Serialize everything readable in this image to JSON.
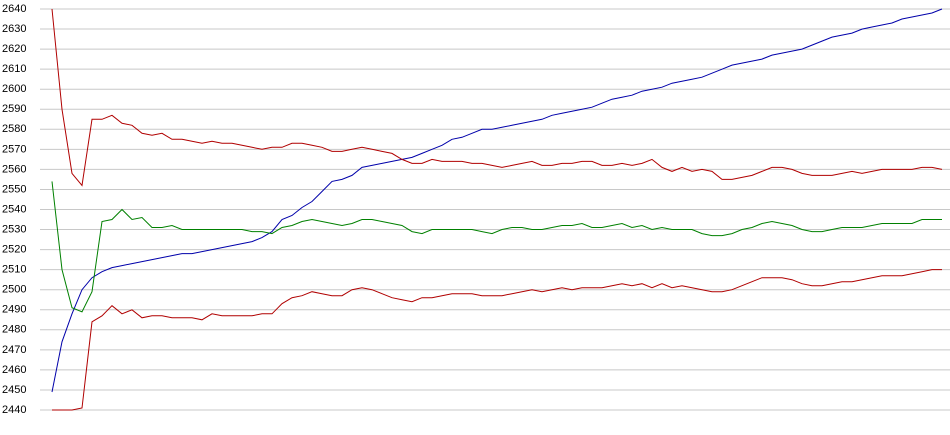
{
  "chart_data": {
    "type": "line",
    "ylim": [
      2440,
      2640
    ],
    "yticks": [
      2440,
      2450,
      2460,
      2470,
      2480,
      2490,
      2500,
      2510,
      2520,
      2530,
      2540,
      2550,
      2560,
      2570,
      2580,
      2590,
      2600,
      2610,
      2620,
      2630,
      2640
    ],
    "grid": true,
    "series": [
      {
        "color": "#0000aa",
        "values": [
          2449,
          2474,
          2488,
          2500,
          2506,
          2509,
          2511,
          2512,
          2513,
          2514,
          2515,
          2516,
          2517,
          2518,
          2518,
          2519,
          2520,
          2521,
          2522,
          2523,
          2524,
          2526,
          2529,
          2535,
          2537,
          2541,
          2544,
          2549,
          2554,
          2555,
          2557,
          2561,
          2562,
          2563,
          2564,
          2565,
          2566,
          2568,
          2570,
          2572,
          2575,
          2576,
          2578,
          2580,
          2580,
          2581,
          2582,
          2583,
          2584,
          2585,
          2587,
          2588,
          2589,
          2590,
          2591,
          2593,
          2595,
          2596,
          2597,
          2599,
          2600,
          2601,
          2603,
          2604,
          2605,
          2606,
          2608,
          2610,
          2612,
          2613,
          2614,
          2615,
          2617,
          2618,
          2619,
          2620,
          2622,
          2624,
          2626,
          2627,
          2628,
          2630,
          2631,
          2632,
          2633,
          2635,
          2636,
          2637,
          2638,
          2640
        ]
      },
      {
        "color": "#b00000",
        "values": [
          2640,
          2590,
          2558,
          2552,
          2585,
          2585,
          2587,
          2583,
          2582,
          2578,
          2577,
          2578,
          2575,
          2575,
          2574,
          2573,
          2574,
          2573,
          2573,
          2572,
          2571,
          2570,
          2571,
          2571,
          2573,
          2573,
          2572,
          2571,
          2569,
          2569,
          2570,
          2571,
          2570,
          2569,
          2568,
          2565,
          2563,
          2563,
          2565,
          2564,
          2564,
          2564,
          2563,
          2563,
          2562,
          2561,
          2562,
          2563,
          2564,
          2562,
          2562,
          2563,
          2563,
          2564,
          2564,
          2562,
          2562,
          2563,
          2562,
          2563,
          2565,
          2561,
          2559,
          2561,
          2559,
          2560,
          2559,
          2555,
          2555,
          2556,
          2557,
          2559,
          2561,
          2561,
          2560,
          2558,
          2557,
          2557,
          2557,
          2558,
          2559,
          2558,
          2559,
          2560,
          2560,
          2560,
          2560,
          2561,
          2561,
          2560
        ]
      },
      {
        "color": "#008000",
        "values": [
          2554,
          2510,
          2491,
          2489,
          2499,
          2534,
          2535,
          2540,
          2535,
          2536,
          2531,
          2531,
          2532,
          2530,
          2530,
          2530,
          2530,
          2530,
          2530,
          2530,
          2529,
          2529,
          2528,
          2531,
          2532,
          2534,
          2535,
          2534,
          2533,
          2532,
          2533,
          2535,
          2535,
          2534,
          2533,
          2532,
          2529,
          2528,
          2530,
          2530,
          2530,
          2530,
          2530,
          2529,
          2528,
          2530,
          2531,
          2531,
          2530,
          2530,
          2531,
          2532,
          2532,
          2533,
          2531,
          2531,
          2532,
          2533,
          2531,
          2532,
          2530,
          2531,
          2530,
          2530,
          2530,
          2528,
          2527,
          2527,
          2528,
          2530,
          2531,
          2533,
          2534,
          2533,
          2532,
          2530,
          2529,
          2529,
          2530,
          2531,
          2531,
          2531,
          2532,
          2533,
          2533,
          2533,
          2533,
          2535,
          2535,
          2535
        ]
      },
      {
        "color": "#b00000",
        "values": [
          2440,
          2440,
          2440,
          2441,
          2484,
          2487,
          2492,
          2488,
          2490,
          2486,
          2487,
          2487,
          2486,
          2486,
          2486,
          2485,
          2488,
          2487,
          2487,
          2487,
          2487,
          2488,
          2488,
          2493,
          2496,
          2497,
          2499,
          2498,
          2497,
          2497,
          2500,
          2501,
          2500,
          2498,
          2496,
          2495,
          2494,
          2496,
          2496,
          2497,
          2498,
          2498,
          2498,
          2497,
          2497,
          2497,
          2498,
          2499,
          2500,
          2499,
          2500,
          2501,
          2500,
          2501,
          2501,
          2501,
          2502,
          2503,
          2502,
          2503,
          2501,
          2503,
          2501,
          2502,
          2501,
          2500,
          2499,
          2499,
          2500,
          2502,
          2504,
          2506,
          2506,
          2506,
          2505,
          2503,
          2502,
          2502,
          2503,
          2504,
          2504,
          2505,
          2506,
          2507,
          2507,
          2507,
          2508,
          2509,
          2510,
          2510
        ]
      }
    ]
  }
}
